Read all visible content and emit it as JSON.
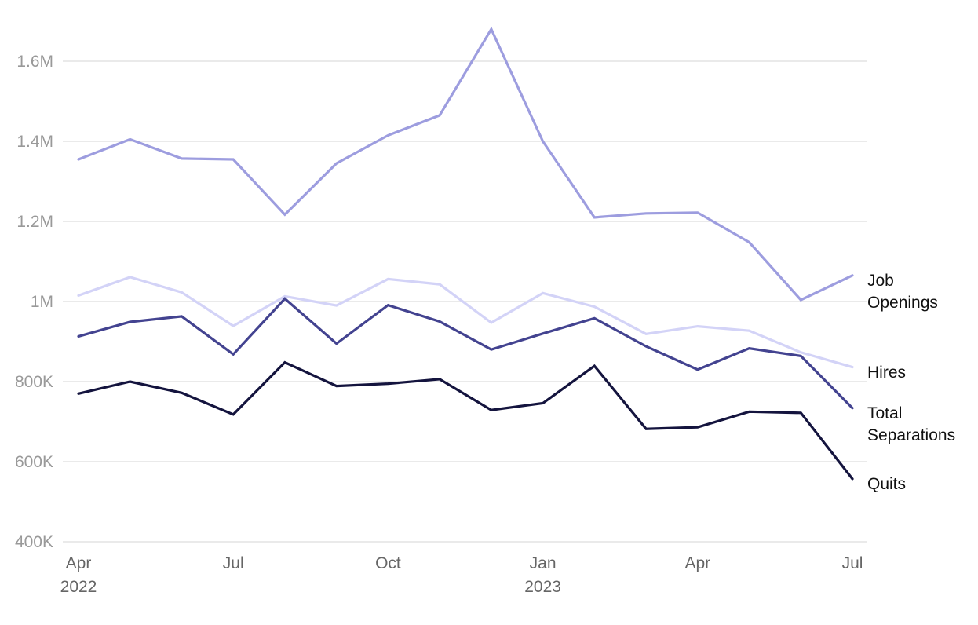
{
  "chart_data": {
    "type": "line",
    "x": [
      "2022-04",
      "2022-05",
      "2022-06",
      "2022-07",
      "2022-08",
      "2022-09",
      "2022-10",
      "2022-11",
      "2022-12",
      "2023-01",
      "2023-02",
      "2023-03",
      "2023-04",
      "2023-05",
      "2023-06",
      "2023-07"
    ],
    "x_tick_labels": [
      {
        "x": "2022-04",
        "lines": [
          "Apr",
          "2022"
        ]
      },
      {
        "x": "2022-07",
        "lines": [
          "Jul"
        ]
      },
      {
        "x": "2022-10",
        "lines": [
          "Oct"
        ]
      },
      {
        "x": "2023-01",
        "lines": [
          "Jan",
          "2023"
        ]
      },
      {
        "x": "2023-04",
        "lines": [
          "Apr"
        ]
      },
      {
        "x": "2023-07",
        "lines": [
          "Jul"
        ]
      }
    ],
    "y_ticks": [
      {
        "value": 400000,
        "label": "400K"
      },
      {
        "value": 600000,
        "label": "600K"
      },
      {
        "value": 800000,
        "label": "800K"
      },
      {
        "value": 1000000,
        "label": "1M"
      },
      {
        "value": 1200000,
        "label": "1.2M"
      },
      {
        "value": 1400000,
        "label": "1.4M"
      },
      {
        "value": 1600000,
        "label": "1.6M"
      }
    ],
    "ylim": [
      400000,
      1700000
    ],
    "grid": true,
    "legend": "direct labels at right end of each line",
    "series": [
      {
        "name": "Job Openings",
        "label_lines": [
          "Job",
          "Openings"
        ],
        "color": "#9d9ddf",
        "values": [
          1355000,
          1405000,
          1357000,
          1355000,
          1217000,
          1345000,
          1415000,
          1465000,
          1680000,
          1400000,
          1210000,
          1220000,
          1222000,
          1148000,
          1004000,
          1065000
        ]
      },
      {
        "name": "Hires",
        "label_lines": [
          "Hires"
        ],
        "color": "#d3d3f7",
        "values": [
          1015000,
          1061000,
          1023000,
          939000,
          1013000,
          990000,
          1056000,
          1043000,
          947000,
          1021000,
          987000,
          919000,
          938000,
          927000,
          873000,
          836000
        ]
      },
      {
        "name": "Total Separations",
        "label_lines": [
          "Total",
          "Separations"
        ],
        "color": "#434390",
        "values": [
          913000,
          949000,
          963000,
          868000,
          1007000,
          895000,
          991000,
          950000,
          880000,
          920000,
          958000,
          888000,
          830000,
          883000,
          864000,
          734000
        ]
      },
      {
        "name": "Quits",
        "label_lines": [
          "Quits"
        ],
        "color": "#14143e",
        "values": [
          770000,
          800000,
          772000,
          718000,
          848000,
          789000,
          795000,
          806000,
          729000,
          746000,
          839000,
          682000,
          686000,
          725000,
          722000,
          557000
        ]
      }
    ]
  }
}
